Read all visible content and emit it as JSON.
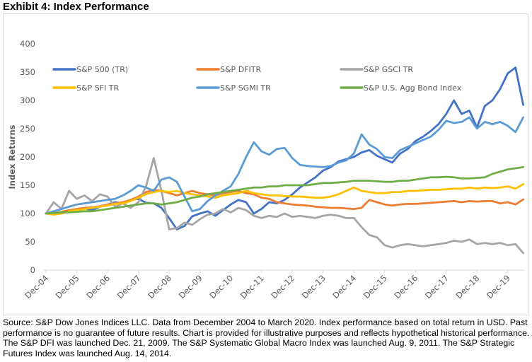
{
  "title": "Exhibit 4: Index Performance",
  "source_text": "Source: S&P Dow Jones Indices LLC. Data from December 2004 to March 2020. Index performance based on total return in USD. Past performance is no guarantee of future results. Chart is provided for illustrative purposes and reflects hypothetical historical performance. The S&P DFI was launched Dec. 21, 2009. The S&P Systematic Global Macro Index was launched Aug. 9, 2011. The S&P Strategic Futures Index was launched Aug. 14, 2014.",
  "chart_data": {
    "type": "line",
    "title": "Index Performance",
    "xlabel": "",
    "ylabel": "Index Returns",
    "ylim": [
      0,
      400
    ],
    "yticks": [
      0,
      50,
      100,
      150,
      200,
      250,
      300,
      350,
      400
    ],
    "grid": false,
    "legend_position": "top",
    "x_frequency": "quarterly",
    "x_start": "Dec-04",
    "x_end": "Mar-20",
    "x_tick_labels": [
      "Dec-04",
      "Dec-05",
      "Dec-06",
      "Dec-07",
      "Dec-08",
      "Dec-09",
      "Dec-10",
      "Dec-11",
      "Dec-12",
      "Dec-13",
      "Dec-14",
      "Dec-15",
      "Dec-16",
      "Dec-17",
      "Dec-18",
      "Dec-19"
    ],
    "series": [
      {
        "name": "S&P 500 (TR)",
        "color": "#4472C4",
        "values": [
          100,
          102,
          100,
          104,
          105,
          109,
          106,
          112,
          116,
          120,
          118,
          124,
          126,
          119,
          118,
          110,
          92,
          72,
          78,
          95,
          100,
          104,
          96,
          106,
          116,
          124,
          120,
          100,
          108,
          120,
          118,
          124,
          134,
          146,
          155,
          164,
          176,
          182,
          192,
          196,
          200,
          208,
          212,
          202,
          196,
          190,
          206,
          214,
          228,
          236,
          246,
          258,
          276,
          300,
          276,
          282,
          252,
          290,
          300,
          320,
          348,
          358,
          292
        ]
      },
      {
        "name": "S&P DFITR",
        "color": "#ED7D31",
        "values": [
          100,
          101,
          103,
          106,
          108,
          110,
          111,
          113,
          116,
          118,
          120,
          124,
          130,
          138,
          142,
          140,
          136,
          132,
          136,
          140,
          136,
          134,
          132,
          136,
          138,
          140,
          136,
          134,
          128,
          126,
          120,
          118,
          116,
          115,
          114,
          112,
          111,
          110,
          110,
          109,
          108,
          110,
          124,
          120,
          116,
          114,
          116,
          117,
          117,
          118,
          119,
          120,
          121,
          122,
          120,
          122,
          121,
          122,
          122,
          118,
          120,
          116,
          125
        ]
      },
      {
        "name": "S&P GSCI TR",
        "color": "#A5A5A5",
        "values": [
          100,
          120,
          108,
          140,
          126,
          132,
          122,
          134,
          130,
          112,
          118,
          110,
          120,
          148,
          198,
          140,
          72,
          74,
          84,
          80,
          90,
          98,
          100,
          108,
          102,
          110,
          106,
          96,
          92,
          96,
          94,
          100,
          94,
          96,
          94,
          92,
          96,
          98,
          96,
          92,
          92,
          76,
          62,
          58,
          44,
          40,
          44,
          46,
          44,
          42,
          44,
          46,
          48,
          52,
          50,
          54,
          46,
          48,
          46,
          48,
          44,
          46,
          30
        ]
      },
      {
        "name": "S&P SFI TR",
        "color": "#FFC000",
        "values": [
          100,
          98,
          100,
          104,
          106,
          108,
          110,
          112,
          114,
          117,
          118,
          122,
          128,
          134,
          138,
          140,
          138,
          140,
          136,
          134,
          132,
          130,
          128,
          132,
          134,
          136,
          140,
          136,
          134,
          132,
          132,
          131,
          130,
          130,
          129,
          128,
          128,
          130,
          134,
          140,
          146,
          140,
          138,
          136,
          136,
          138,
          138,
          140,
          140,
          141,
          142,
          142,
          143,
          144,
          144,
          146,
          144,
          146,
          145,
          146,
          148,
          144,
          152
        ]
      },
      {
        "name": "S&P SGMI TR",
        "color": "#5B9BD5",
        "values": [
          100,
          104,
          108,
          112,
          116,
          118,
          120,
          122,
          124,
          126,
          132,
          140,
          150,
          146,
          140,
          160,
          164,
          156,
          130,
          104,
          108,
          122,
          132,
          140,
          148,
          170,
          200,
          226,
          210,
          204,
          214,
          216,
          198,
          186,
          184,
          183,
          182,
          184,
          190,
          194,
          206,
          240,
          222,
          214,
          200,
          198,
          212,
          218,
          224,
          230,
          236,
          248,
          264,
          260,
          262,
          270,
          250,
          262,
          258,
          262,
          255,
          244,
          270
        ]
      },
      {
        "name": "S&P U.S. Agg Bond Index",
        "color": "#70AD47",
        "values": [
          100,
          101,
          102,
          102,
          103,
          104,
          104,
          106,
          108,
          110,
          112,
          114,
          116,
          118,
          118,
          116,
          118,
          120,
          124,
          128,
          130,
          134,
          136,
          138,
          140,
          142,
          144,
          146,
          146,
          148,
          148,
          150,
          150,
          150,
          150,
          152,
          154,
          154,
          155,
          156,
          158,
          158,
          158,
          157,
          156,
          156,
          158,
          158,
          160,
          162,
          164,
          164,
          165,
          164,
          162,
          162,
          163,
          164,
          170,
          174,
          178,
          180,
          182
        ]
      }
    ]
  }
}
